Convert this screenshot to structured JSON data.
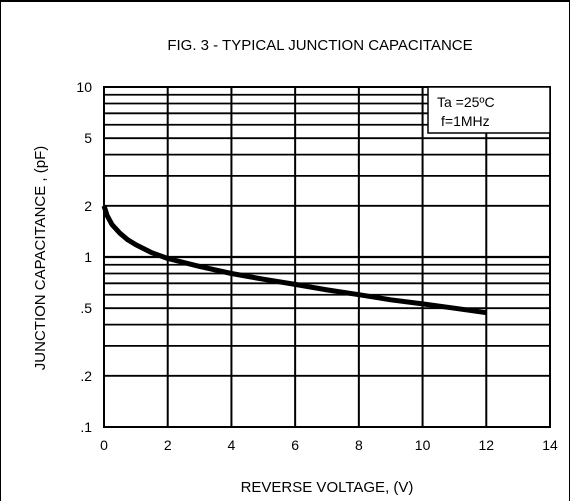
{
  "chart_data": {
    "type": "line",
    "title": "FIG. 3 - TYPICAL JUNCTION CAPACITANCE",
    "xlabel": "REVERSE  VOLTAGE, (V)",
    "ylabel": "JUNCTION CAPACITANCE ,  (pF)",
    "xlim": [
      0,
      14
    ],
    "ylim": [
      0.1,
      10
    ],
    "y_scale": "log",
    "grid": true,
    "x_ticks": [
      "0",
      "2",
      "4",
      "6",
      "8",
      "10",
      "12",
      "14"
    ],
    "y_ticks": [
      {
        "value": 10,
        "label": "10"
      },
      {
        "value": 5,
        "label": "5"
      },
      {
        "value": 2,
        "label": "2"
      },
      {
        "value": 1,
        "label": "1"
      },
      {
        "value": 0.5,
        "label": ".5"
      },
      {
        "value": 0.2,
        "label": ".2"
      },
      {
        "value": 0.1,
        "label": ".1"
      }
    ],
    "annotations": [
      "Ta =25ºC",
      "f=1MHz"
    ],
    "series": [
      {
        "x": [
          0,
          0.1,
          0.25,
          0.5,
          0.75,
          1,
          1.5,
          2,
          3,
          4,
          5,
          6,
          7,
          8,
          9,
          10,
          11,
          12
        ],
        "y": [
          2.0,
          1.75,
          1.55,
          1.38,
          1.26,
          1.18,
          1.06,
          0.98,
          0.88,
          0.8,
          0.74,
          0.69,
          0.64,
          0.6,
          0.56,
          0.53,
          0.5,
          0.47
        ]
      }
    ]
  }
}
